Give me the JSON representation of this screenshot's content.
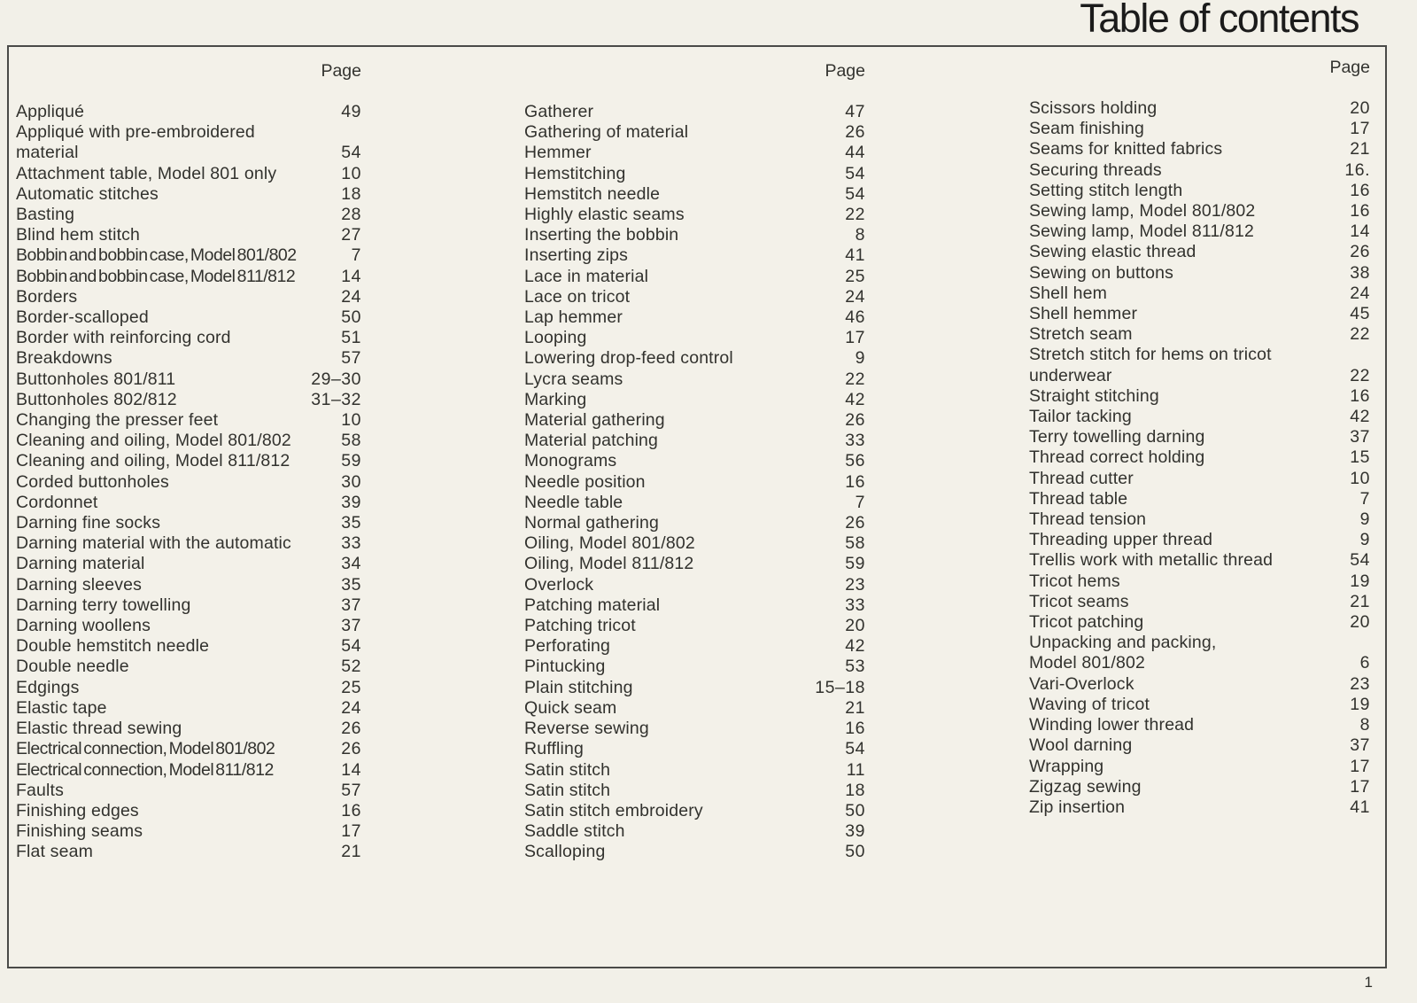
{
  "title": "Table of contents",
  "footer_page_number": "1",
  "columns": [
    {
      "header": "Page",
      "rows": [
        {
          "t": "Appliqué",
          "p": "49"
        },
        {
          "t": "Appliqué with pre-embroidered",
          "p": ""
        },
        {
          "t": "material",
          "p": "54"
        },
        {
          "t": "Attachment table, Model 801 only",
          "p": "10"
        },
        {
          "t": "Automatic stitches",
          "p": "18"
        },
        {
          "t": "Basting",
          "p": "28"
        },
        {
          "t": "Blind hem stitch",
          "p": "27"
        },
        {
          "t": "Bobbin and bobbin case, Model 801/802",
          "p": "7"
        },
        {
          "t": "Bobbin and bobbin case, Model 811/812",
          "p": "14"
        },
        {
          "t": "Borders",
          "p": "24"
        },
        {
          "t": "Border-scalloped",
          "p": "50"
        },
        {
          "t": "Border with reinforcing cord",
          "p": "51"
        },
        {
          "t": "Breakdowns",
          "p": "57"
        },
        {
          "t": "Buttonholes 801/811",
          "p": "29–30"
        },
        {
          "t": "Buttonholes 802/812",
          "p": "31–32"
        },
        {
          "t": "Changing the presser feet",
          "p": "10"
        },
        {
          "t": "Cleaning and oiling, Model 801/802",
          "p": "58"
        },
        {
          "t": "Cleaning and oiling, Model 811/812",
          "p": "59"
        },
        {
          "t": "Corded buttonholes",
          "p": "30"
        },
        {
          "t": "Cordonnet",
          "p": "39"
        },
        {
          "t": "Darning fine socks",
          "p": "35"
        },
        {
          "t": "Darning material with the automatic",
          "p": "33"
        },
        {
          "t": "Darning material",
          "p": "34"
        },
        {
          "t": "Darning sleeves",
          "p": "35"
        },
        {
          "t": "Darning terry towelling",
          "p": "37"
        },
        {
          "t": "Darning woollens",
          "p": "37"
        },
        {
          "t": "Double hemstitch needle",
          "p": "54"
        },
        {
          "t": "Double needle",
          "p": "52"
        },
        {
          "t": "Edgings",
          "p": "25"
        },
        {
          "t": "Elastic tape",
          "p": "24"
        },
        {
          "t": "Elastic thread sewing",
          "p": "26"
        },
        {
          "t": "Electrical connection, Model 801/802",
          "p": "26"
        },
        {
          "t": "Electrical connection, Model 811/812",
          "p": "14"
        },
        {
          "t": "Faults",
          "p": "57"
        },
        {
          "t": "Finishing edges",
          "p": "16"
        },
        {
          "t": "Finishing seams",
          "p": "17"
        },
        {
          "t": "Flat seam",
          "p": "21"
        }
      ]
    },
    {
      "header": "Page",
      "rows": [
        {
          "t": "Gatherer",
          "p": "47"
        },
        {
          "t": "Gathering of material",
          "p": "26"
        },
        {
          "t": "Hemmer",
          "p": "44"
        },
        {
          "t": "Hemstitching",
          "p": "54"
        },
        {
          "t": "Hemstitch needle",
          "p": "54"
        },
        {
          "t": "Highly elastic seams",
          "p": "22"
        },
        {
          "t": "Inserting the bobbin",
          "p": "8"
        },
        {
          "t": "Inserting zips",
          "p": "41"
        },
        {
          "t": "Lace in material",
          "p": "25"
        },
        {
          "t": "Lace on tricot",
          "p": "24"
        },
        {
          "t": "Lap hemmer",
          "p": "46"
        },
        {
          "t": "Looping",
          "p": "17"
        },
        {
          "t": "Lowering drop-feed control",
          "p": "9"
        },
        {
          "t": "Lycra seams",
          "p": "22"
        },
        {
          "t": "Marking",
          "p": "42"
        },
        {
          "t": "Material gathering",
          "p": "26"
        },
        {
          "t": "Material patching",
          "p": "33"
        },
        {
          "t": "Monograms",
          "p": "56"
        },
        {
          "t": "Needle position",
          "p": "16"
        },
        {
          "t": "Needle table",
          "p": "7"
        },
        {
          "t": "Normal gathering",
          "p": "26"
        },
        {
          "t": "Oiling, Model 801/802",
          "p": "58"
        },
        {
          "t": "Oiling, Model 811/812",
          "p": "59"
        },
        {
          "t": "Overlock",
          "p": "23"
        },
        {
          "t": "Patching material",
          "p": "33"
        },
        {
          "t": "Patching tricot",
          "p": "20"
        },
        {
          "t": "Perforating",
          "p": "42"
        },
        {
          "t": "Pintucking",
          "p": "53"
        },
        {
          "t": "Plain stitching",
          "p": "15–18"
        },
        {
          "t": "Quick seam",
          "p": "21"
        },
        {
          "t": "Reverse sewing",
          "p": "16"
        },
        {
          "t": "Ruffling",
          "p": "54"
        },
        {
          "t": "Satin stitch",
          "p": "11"
        },
        {
          "t": "Satin stitch",
          "p": "18"
        },
        {
          "t": "Satin stitch embroidery",
          "p": "50"
        },
        {
          "t": "Saddle stitch",
          "p": "39"
        },
        {
          "t": "Scalloping",
          "p": "50"
        }
      ]
    },
    {
      "header": "Page",
      "rows": [
        {
          "t": "Scissors holding",
          "p": "20"
        },
        {
          "t": "Seam finishing",
          "p": "17"
        },
        {
          "t": "Seams for knitted fabrics",
          "p": "21"
        },
        {
          "t": "Securing threads",
          "p": "16."
        },
        {
          "t": "Setting stitch length",
          "p": "16"
        },
        {
          "t": "Sewing lamp, Model 801/802",
          "p": "16"
        },
        {
          "t": "Sewing lamp, Model 811/812",
          "p": "14"
        },
        {
          "t": "Sewing elastic thread",
          "p": "26"
        },
        {
          "t": "Sewing on buttons",
          "p": "38"
        },
        {
          "t": "Shell hem",
          "p": "24"
        },
        {
          "t": "Shell hemmer",
          "p": "45"
        },
        {
          "t": "Stretch seam",
          "p": "22"
        },
        {
          "t": "Stretch stitch for hems on tricot",
          "p": ""
        },
        {
          "t": "underwear",
          "p": "22"
        },
        {
          "t": "Straight stitching",
          "p": "16"
        },
        {
          "t": "Tailor tacking",
          "p": "42"
        },
        {
          "t": "Terry towelling darning",
          "p": "37"
        },
        {
          "t": "Thread correct holding",
          "p": "15"
        },
        {
          "t": "Thread cutter",
          "p": "10"
        },
        {
          "t": "Thread table",
          "p": "7"
        },
        {
          "t": "Thread tension",
          "p": "9"
        },
        {
          "t": "Threading upper thread",
          "p": "9"
        },
        {
          "t": "Trellis work with metallic thread",
          "p": "54"
        },
        {
          "t": "Tricot hems",
          "p": "19"
        },
        {
          "t": "Tricot seams",
          "p": "21"
        },
        {
          "t": "Tricot patching",
          "p": "20"
        },
        {
          "t": "Unpacking and packing,",
          "p": ""
        },
        {
          "t": "Model 801/802",
          "p": "6"
        },
        {
          "t": "Vari-Overlock",
          "p": "23"
        },
        {
          "t": "Waving of tricot",
          "p": "19"
        },
        {
          "t": "Winding lower thread",
          "p": "8"
        },
        {
          "t": "Wool darning",
          "p": "37"
        },
        {
          "t": "Wrapping",
          "p": "17"
        },
        {
          "t": "Zigzag sewing",
          "p": "17"
        },
        {
          "t": "Zip insertion",
          "p": "41"
        }
      ]
    }
  ]
}
